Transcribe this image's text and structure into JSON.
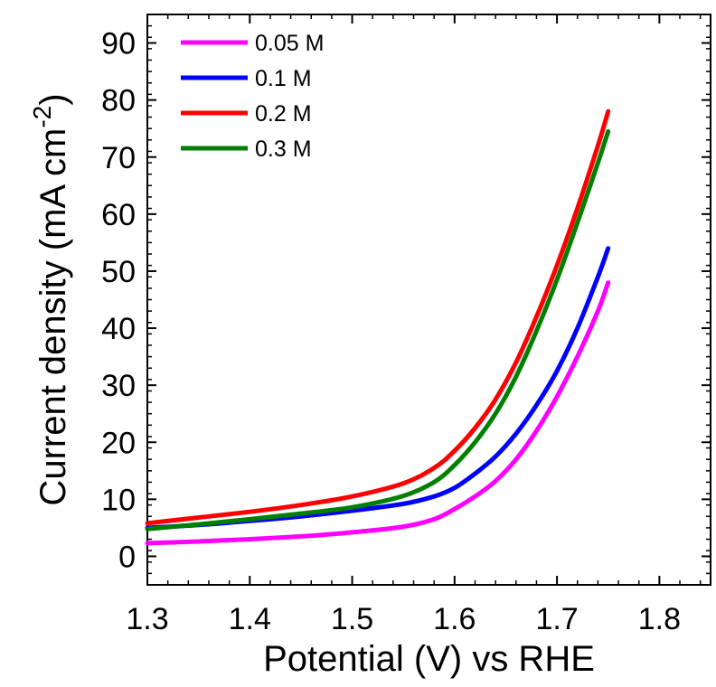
{
  "chart_data": {
    "type": "line",
    "xlabel": "Potential (V) vs RHE",
    "ylabel": {
      "main": "Current density (mA cm",
      "superscript": "-2",
      "close": ")"
    },
    "xlim": [
      1.3,
      1.85
    ],
    "ylim": [
      -5,
      95
    ],
    "xticks": [
      1.3,
      1.4,
      1.5,
      1.6,
      1.7,
      1.8
    ],
    "xtick_labels": [
      "1.3",
      "1.4",
      "1.5",
      "1.6",
      "1.7",
      "1.8"
    ],
    "yticks": [
      0,
      10,
      20,
      30,
      40,
      50,
      60,
      70,
      80,
      90
    ],
    "ytick_labels": [
      "0",
      "10",
      "20",
      "30",
      "40",
      "50",
      "60",
      "70",
      "80",
      "90"
    ],
    "grid": false,
    "legend_position": "top-left",
    "series": [
      {
        "name": "0.05 M",
        "color": "#ff00ff",
        "x": [
          1.3,
          1.35,
          1.4,
          1.45,
          1.5,
          1.55,
          1.58,
          1.6,
          1.62,
          1.64,
          1.66,
          1.68,
          1.7,
          1.72,
          1.74,
          1.75
        ],
        "y": [
          2.3,
          2.6,
          3.0,
          3.5,
          4.2,
          5.2,
          6.5,
          8.3,
          10.5,
          13.2,
          17.0,
          22.0,
          28.0,
          35.0,
          43.0,
          48.0
        ]
      },
      {
        "name": "0.1 M",
        "color": "#0000ff",
        "x": [
          1.3,
          1.35,
          1.4,
          1.45,
          1.5,
          1.55,
          1.58,
          1.6,
          1.62,
          1.64,
          1.66,
          1.68,
          1.7,
          1.72,
          1.74,
          1.75
        ],
        "y": [
          5.0,
          5.5,
          6.2,
          7.0,
          8.0,
          9.2,
          10.5,
          12.0,
          14.5,
          17.5,
          21.5,
          26.5,
          32.5,
          40.0,
          49.0,
          54.0
        ]
      },
      {
        "name": "0.2 M",
        "color": "#ff0000",
        "x": [
          1.3,
          1.35,
          1.4,
          1.45,
          1.5,
          1.55,
          1.58,
          1.6,
          1.62,
          1.64,
          1.66,
          1.68,
          1.7,
          1.72,
          1.74,
          1.75
        ],
        "y": [
          5.8,
          6.8,
          7.8,
          9.0,
          10.5,
          12.8,
          15.5,
          18.5,
          22.5,
          27.5,
          34.0,
          42.0,
          51.0,
          61.0,
          72.0,
          78.0
        ]
      },
      {
        "name": "0.3 M",
        "color": "#008000",
        "x": [
          1.3,
          1.35,
          1.4,
          1.45,
          1.5,
          1.55,
          1.58,
          1.6,
          1.62,
          1.64,
          1.66,
          1.68,
          1.7,
          1.72,
          1.74,
          1.75
        ],
        "y": [
          4.8,
          5.6,
          6.5,
          7.5,
          8.6,
          10.6,
          13.0,
          16.0,
          20.0,
          25.0,
          31.5,
          39.5,
          48.5,
          58.5,
          69.0,
          74.5
        ]
      }
    ]
  }
}
